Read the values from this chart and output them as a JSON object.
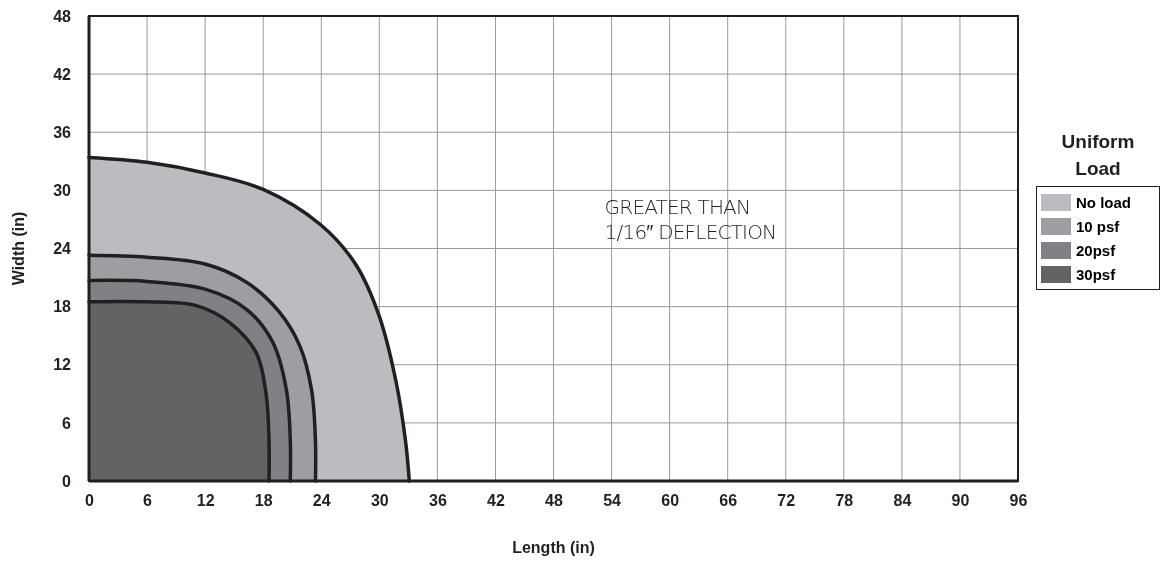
{
  "chart_data": {
    "type": "area",
    "xlabel": "Length (in)",
    "ylabel": "Width (in)",
    "legend_title": "Uniform Load",
    "xlim": [
      0,
      96
    ],
    "ylim": [
      0,
      48
    ],
    "xticks": [
      0,
      6,
      12,
      18,
      24,
      30,
      36,
      42,
      48,
      54,
      60,
      66,
      72,
      78,
      84,
      90,
      96
    ],
    "yticks": [
      0,
      6,
      12,
      18,
      24,
      30,
      36,
      42,
      48
    ],
    "grid": true,
    "legend": "right",
    "series": [
      {
        "name": "No load",
        "color": "#bbbcc0",
        "x": [
          0,
          6,
          12,
          18,
          24,
          27.6,
          30,
          31.7,
          32.7,
          33.1
        ],
        "values": [
          33.4,
          32.9,
          31.8,
          30.1,
          26.4,
          22.3,
          17.0,
          10.4,
          4.2,
          0
        ]
      },
      {
        "name": "10 psf",
        "color": "#9d9ea2",
        "x": [
          0,
          6,
          12,
          16.3,
          19.7,
          21.8,
          23.0,
          23.4,
          23.4
        ],
        "values": [
          23.3,
          23.1,
          22.4,
          20.5,
          17.4,
          13.9,
          9.4,
          4.2,
          0
        ]
      },
      {
        "name": "20psf",
        "color": "#808185",
        "x": [
          0,
          6,
          12,
          16.3,
          19.0,
          20.4,
          20.8,
          20.8
        ],
        "values": [
          20.7,
          20.6,
          19.8,
          17.7,
          14.3,
          9.4,
          4.2,
          0
        ]
      },
      {
        "name": "30psf",
        "color": "#636365",
        "x": [
          0,
          6,
          11.1,
          14.6,
          17.3,
          18.3,
          18.6,
          18.6
        ],
        "values": [
          18.5,
          18.5,
          18.1,
          16.3,
          13.2,
          9.0,
          4.2,
          0
        ]
      }
    ],
    "annotations": [
      "GREATER THAN\n1/16″ DEFLECTION"
    ]
  }
}
